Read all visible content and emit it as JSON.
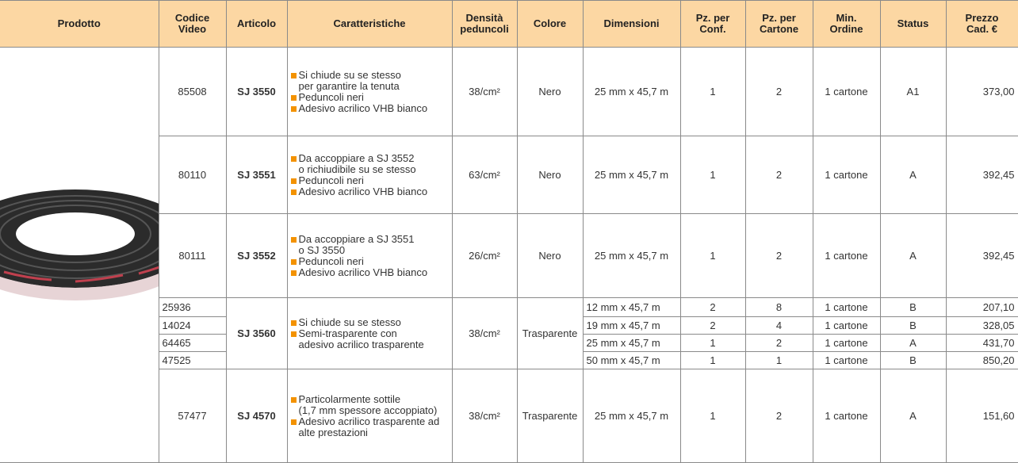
{
  "table": {
    "headers": [
      "Prodotto",
      "Codice\nVideo",
      "Articolo",
      "Caratteristiche",
      "Densità\npeduncoli",
      "Colore",
      "Dimensioni",
      "Pz. per\nConf.",
      "Pz. per\nCartone",
      "Min.\nOrdine",
      "Status",
      "Prezzo\nCad. €"
    ],
    "rows": [
      {
        "article": "SJ 3550",
        "features": [
          "Si chiude su se stesso\nper garantire la tenuta",
          "Peduncoli neri",
          "Adesivo acrilico VHB bianco"
        ],
        "density": "38/cm²",
        "color": "Nero",
        "variants": [
          {
            "code": "85508",
            "dimensions": "25 mm x 45,7 m",
            "pz_conf": 1,
            "pz_cartone": 2,
            "min_order": "1 cartone",
            "status": "A1",
            "price": "373,00"
          }
        ]
      },
      {
        "article": "SJ 3551",
        "features": [
          "Da accoppiare a SJ 3552\no richiudibile su se stesso",
          "Peduncoli neri",
          "Adesivo acrilico VHB bianco"
        ],
        "density": "63/cm²",
        "color": "Nero",
        "variants": [
          {
            "code": "80110",
            "dimensions": "25 mm x 45,7 m",
            "pz_conf": 1,
            "pz_cartone": 2,
            "min_order": "1 cartone",
            "status": "A",
            "price": "392,45"
          }
        ]
      },
      {
        "article": "SJ 3552",
        "features": [
          "Da accoppiare a SJ 3551\no SJ 3550",
          "Peduncoli neri",
          "Adesivo acrilico VHB bianco"
        ],
        "density": "26/cm²",
        "color": "Nero",
        "variants": [
          {
            "code": "80111",
            "dimensions": "25 mm x 45,7 m",
            "pz_conf": 1,
            "pz_cartone": 2,
            "min_order": "1 cartone",
            "status": "A",
            "price": "392,45"
          }
        ]
      },
      {
        "article": "SJ 3560",
        "features": [
          "Si chiude su se stesso",
          "Semi-trasparente con\nadesivo acrilico trasparente"
        ],
        "density": "38/cm²",
        "color": "Trasparente",
        "variants": [
          {
            "code": "25936",
            "dimensions": "12 mm x 45,7 m",
            "pz_conf": 2,
            "pz_cartone": 8,
            "min_order": "1 cartone",
            "status": "B",
            "price": "207,10"
          },
          {
            "code": "14024",
            "dimensions": "19 mm x 45,7 m",
            "pz_conf": 2,
            "pz_cartone": 4,
            "min_order": "1 cartone",
            "status": "B",
            "price": "328,05"
          },
          {
            "code": "64465",
            "dimensions": "25 mm x 45,7 m",
            "pz_conf": 1,
            "pz_cartone": 2,
            "min_order": "1 cartone",
            "status": "A",
            "price": "431,70"
          },
          {
            "code": "47525",
            "dimensions": "50 mm x 45,7 m",
            "pz_conf": 1,
            "pz_cartone": 1,
            "min_order": "1 cartone",
            "status": "B",
            "price": "850,20"
          }
        ]
      },
      {
        "article": "SJ 4570",
        "features": [
          "Particolarmente sottile\n(1,7 mm spessore accoppiato)",
          "Adesivo acrilico trasparente ad\nalte prestazioni"
        ],
        "density": "38/cm²",
        "color": "Trasparente",
        "variants": [
          {
            "code": "57477",
            "dimensions": "25 mm x 45,7 m",
            "pz_conf": 1,
            "pz_cartone": 2,
            "min_order": "1 cartone",
            "status": "A",
            "price": "151,60"
          }
        ]
      }
    ]
  }
}
